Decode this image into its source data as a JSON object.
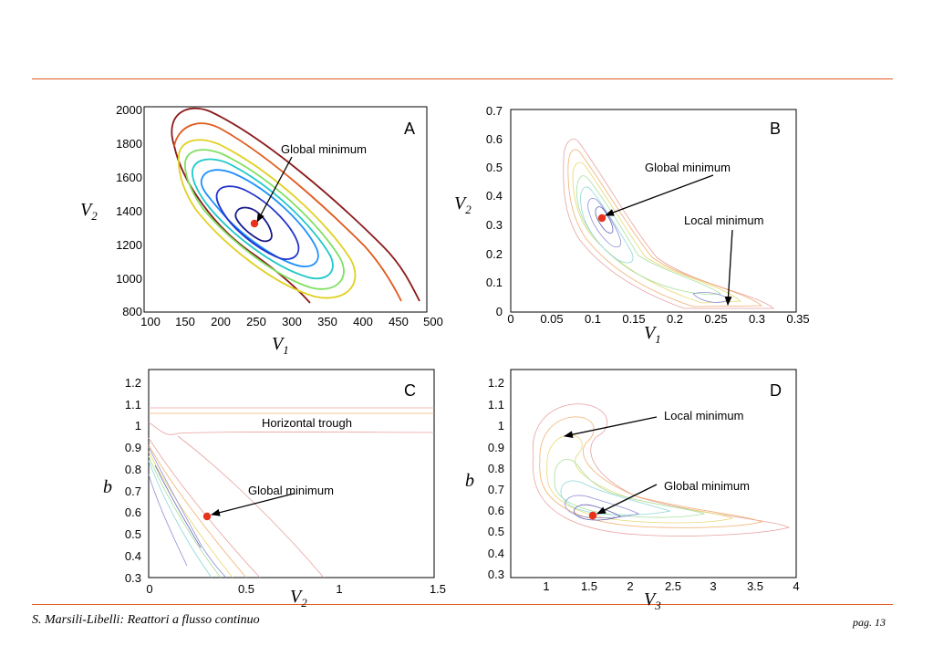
{
  "footer": {
    "left": "S. Marsili-Libelli: Reattori a flusso continuo",
    "right": "pag. 13"
  },
  "colors": {
    "rule": "#e05a1e",
    "marker": "#e8321c"
  },
  "chart_data": [
    {
      "panel": "A",
      "type": "contour",
      "xlabel": "V",
      "xlabel_sub": "1",
      "ylabel": "V",
      "ylabel_sub": "2",
      "xlim": [
        100,
        500
      ],
      "ylim": [
        800,
        2000
      ],
      "xticks": [
        100,
        150,
        200,
        250,
        300,
        350,
        400,
        450,
        500
      ],
      "yticks": [
        800,
        1000,
        1200,
        1400,
        1600,
        1800,
        2000
      ],
      "annotations": [
        {
          "text": "Global minimum",
          "text_at": [
            245,
            1750
          ],
          "points_to": [
            250,
            1290
          ]
        }
      ],
      "markers": [
        {
          "x": 250,
          "y": 1290
        }
      ],
      "series": [
        {
          "kind": "ellipse",
          "cx": 268,
          "cy": 1315,
          "rx": 32,
          "ry": 120,
          "tilt": 1,
          "color": "#1a1a8c"
        },
        {
          "kind": "ellipse",
          "cx": 280,
          "cy": 1310,
          "rx": 70,
          "ry": 260,
          "tilt": 1,
          "color": "#2233cc"
        },
        {
          "kind": "ellipse",
          "cx": 295,
          "cy": 1300,
          "rx": 110,
          "ry": 380,
          "tilt": 1,
          "color": "#1e90ff"
        },
        {
          "kind": "ellipse",
          "cx": 305,
          "cy": 1290,
          "rx": 135,
          "ry": 450,
          "tilt": 1,
          "color": "#20c8c8"
        },
        {
          "kind": "ellipse",
          "cx": 310,
          "cy": 1280,
          "rx": 150,
          "ry": 500,
          "tilt": 1,
          "color": "#80e060"
        },
        {
          "kind": "ellipse",
          "cx": 315,
          "cy": 1270,
          "rx": 165,
          "ry": 550,
          "tilt": 1,
          "color": "#e0d020"
        },
        {
          "kind": "open",
          "color": "#e05a1e",
          "points": [
            [
              150,
              1380
            ],
            [
              160,
              1700
            ],
            [
              190,
              1870
            ],
            [
              240,
              1800
            ],
            [
              320,
              1500
            ],
            [
              400,
              1100
            ],
            [
              455,
              840
            ]
          ]
        },
        {
          "kind": "open",
          "color": "#8b1a1a",
          "points": [
            [
              140,
              1340
            ],
            [
              140,
              1750
            ],
            [
              170,
              1990
            ],
            [
              230,
              1940
            ],
            [
              330,
              1560
            ],
            [
              420,
              1120
            ],
            [
              475,
              840
            ]
          ]
        },
        {
          "kind": "open",
          "color": "#8b1a1a",
          "points": [
            [
              140,
              1340
            ],
            [
              180,
              1150
            ],
            [
              260,
              960
            ],
            [
              340,
              800
            ]
          ]
        }
      ]
    },
    {
      "panel": "B",
      "type": "contour",
      "xlabel": "V",
      "xlabel_sub": "1",
      "ylabel": "V",
      "ylabel_sub": "2",
      "xlim": [
        0,
        0.35
      ],
      "ylim": [
        0,
        0.7
      ],
      "xticks": [
        0,
        0.05,
        0.1,
        0.15,
        0.2,
        0.25,
        0.3,
        0.35
      ],
      "yticks": [
        0,
        0.1,
        0.2,
        0.3,
        0.4,
        0.5,
        0.6,
        0.7
      ],
      "annotations": [
        {
          "text": "Global minimum",
          "text_at": [
            0.16,
            0.49
          ],
          "points_to": [
            0.115,
            0.31
          ]
        },
        {
          "text": "Local minimum",
          "text_at": [
            0.205,
            0.31
          ],
          "points_to": [
            0.26,
            0.03
          ]
        }
      ],
      "markers": [
        {
          "x": 0.115,
          "y": 0.31
        }
      ],
      "series": []
    },
    {
      "panel": "C",
      "type": "contour",
      "xlabel": "V",
      "xlabel_sub": "2",
      "ylabel": "b",
      "ylabel_sub": "",
      "xlim": [
        0,
        1.5
      ],
      "ylim": [
        0.3,
        1.25
      ],
      "xticks": [
        0,
        0.5,
        1,
        1.5
      ],
      "yticks": [
        0.3,
        0.4,
        0.5,
        0.6,
        0.7,
        0.8,
        0.9,
        1,
        1.1,
        1.2
      ],
      "annotations": [
        {
          "text": "Horizontal trough",
          "text_at": [
            0.58,
            1.01
          ],
          "points_to": null
        },
        {
          "text": "Global minimum",
          "text_at": [
            0.5,
            0.69
          ],
          "points_to": [
            0.3,
            0.56
          ]
        }
      ],
      "markers": [
        {
          "x": 0.3,
          "y": 0.56
        }
      ],
      "series": []
    },
    {
      "panel": "D",
      "type": "contour",
      "xlabel": "V",
      "xlabel_sub": "3",
      "ylabel": "b",
      "ylabel_sub": "",
      "xlim": [
        0.6,
        4.05
      ],
      "ylim": [
        0.3,
        1.25
      ],
      "xticks": [
        1,
        1.5,
        2,
        2.5,
        3,
        3.5,
        4
      ],
      "yticks": [
        0.3,
        0.4,
        0.5,
        0.6,
        0.7,
        0.8,
        0.9,
        1,
        1.1,
        1.2
      ],
      "annotations": [
        {
          "text": "Local minimum",
          "text_at": [
            2.0,
            1.03
          ],
          "points_to": [
            1.21,
            0.94
          ]
        },
        {
          "text": "Global minimum",
          "text_at": [
            2.0,
            0.67
          ],
          "points_to": [
            1.56,
            0.56
          ]
        }
      ],
      "markers": [
        {
          "x": 1.56,
          "y": 0.56
        }
      ],
      "series": []
    }
  ],
  "panels": {
    "A": {
      "label": "A",
      "x_sub": "1",
      "y_sub": "2",
      "xtick_labels": [
        "100",
        "150",
        "200",
        "250",
        "300",
        "350",
        "400",
        "450",
        "500"
      ],
      "ytick_labels": [
        "800",
        "1000",
        "1200",
        "1400",
        "1600",
        "1800",
        "2000"
      ],
      "ann1": "Global minimum"
    },
    "B": {
      "label": "B",
      "x_sub": "1",
      "y_sub": "2",
      "xtick_labels": [
        "0",
        "0.05",
        "0.1",
        "0.15",
        "0.2",
        "0.25",
        "0.3",
        "0.35"
      ],
      "ytick_labels": [
        "0",
        "0.1",
        "0.2",
        "0.3",
        "0.4",
        "0.5",
        "0.6",
        "0.7"
      ],
      "ann1": "Global minimum",
      "ann2": "Local minimum"
    },
    "C": {
      "label": "C",
      "x_sub": "2",
      "xtick_labels": [
        "0",
        "0.5",
        "1",
        "1.5"
      ],
      "ytick_labels": [
        "0.3",
        "0.4",
        "0.5",
        "0.6",
        "0.7",
        "0.8",
        "0.9",
        "1",
        "1.1",
        "1.2"
      ],
      "ann1": "Horizontal trough",
      "ann2": "Global minimum"
    },
    "D": {
      "label": "D",
      "x_sub": "3",
      "xtick_labels": [
        "1",
        "1.5",
        "2",
        "2.5",
        "3",
        "3.5",
        "4"
      ],
      "ytick_labels": [
        "0.3",
        "0.4",
        "0.5",
        "0.6",
        "0.7",
        "0.8",
        "0.9",
        "1",
        "1.1",
        "1.2"
      ],
      "ann1": "Local minimum",
      "ann2": "Global minimum"
    },
    "axis_letter_v": "V",
    "axis_letter_b": "b"
  }
}
